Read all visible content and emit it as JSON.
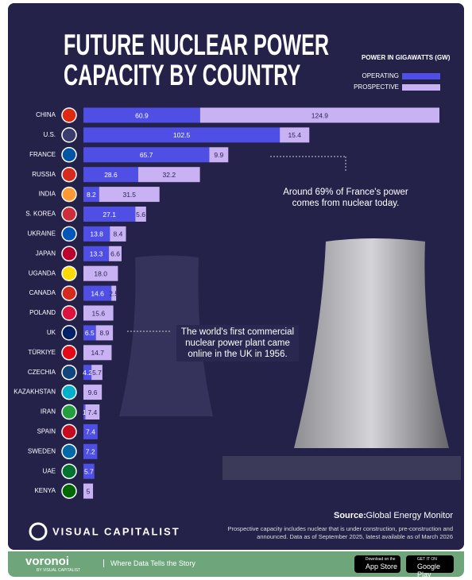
{
  "chart_data": {
    "type": "stacked-bar-horizontal",
    "title": "FUTURE NUCLEAR POWER CAPACITY BY COUNTRY",
    "legend_title": "POWER IN GIGAWATTS (GW)",
    "categories": [
      "CHINA",
      "U.S.",
      "FRANCE",
      "RUSSIA",
      "INDIA",
      "S. KOREA",
      "UKRAINE",
      "JAPAN",
      "UGANDA",
      "CANADA",
      "POLAND",
      "UK",
      "TÜRKIYE",
      "CZECHIA",
      "KAZAKHSTAN",
      "IRAN",
      "SPAIN",
      "SWEDEN",
      "UAE",
      "KENYA"
    ],
    "series": [
      {
        "name": "OPERATING",
        "color": "#4f4fe6",
        "values": [
          60.9,
          102.5,
          65.7,
          28.6,
          8.2,
          27.1,
          13.8,
          13.3,
          null,
          14.6,
          null,
          6.5,
          null,
          4.2,
          null,
          1,
          7.4,
          7.2,
          5.7,
          null
        ]
      },
      {
        "name": "PROSPECTIVE",
        "color": "#c8b2f4",
        "values": [
          124.9,
          15.4,
          9.9,
          32.2,
          31.5,
          5.6,
          8.4,
          6.6,
          18,
          2.5,
          15.6,
          8.9,
          14.7,
          5.7,
          9.6,
          7.4,
          null,
          null,
          null,
          5
        ],
        "value_labels": [
          "124.9",
          "15.4",
          "9.9",
          "32.2",
          "31.5",
          "5.6",
          "8.4",
          "6.6",
          "18.0",
          "2.5",
          "15.6",
          "8.9",
          "14.7",
          "5.7",
          "9.6",
          "7.4",
          null,
          null,
          null,
          "5"
        ]
      }
    ],
    "annotations": [
      "Around 69% of France's power comes from nuclear today.",
      "The world's first commercial nuclear power plant came online in the UK in 1956."
    ],
    "source_label": "Source:",
    "source": "Global Energy Monitor",
    "note": "Prospective capacity includes nuclear that is under construction, pre-construction and announced. Data as of September 2025, latest available as of March 2026",
    "brand": "VISUAL CAPITALIST"
  },
  "footer": {
    "logo": "voronoi",
    "logo_sub": "BY VISUAL CAPITALIST",
    "tagline": "Where Data Tells the Story",
    "app_store_top": "Download on the",
    "app_store": "App Store",
    "google_play_top": "GET IT ON",
    "google_play": "Google Play"
  }
}
